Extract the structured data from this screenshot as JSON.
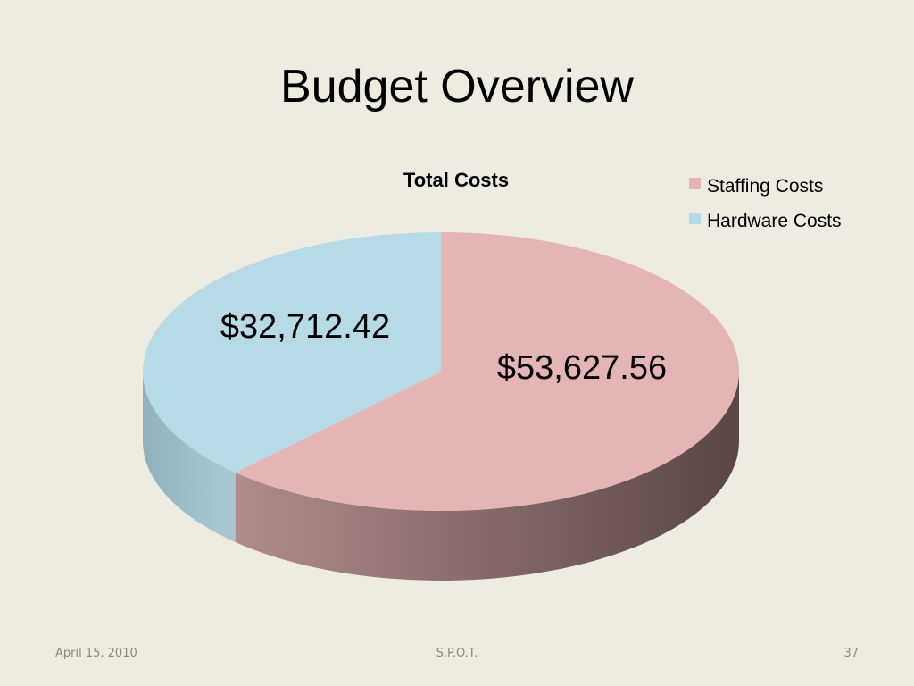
{
  "slide": {
    "title": "Budget Overview",
    "footer_date": "April 15, 2010",
    "footer_center": "S.P.O.T.",
    "page_number": "37"
  },
  "chart_data": {
    "type": "pie",
    "title": "Total Costs",
    "style": "3d",
    "legend_position": "top-right",
    "categories": [
      "Staffing Costs",
      "Hardware Costs"
    ],
    "values": [
      53627.56,
      32712.42
    ],
    "value_labels": [
      "$53,627.56",
      "$32,712.42"
    ],
    "colors": [
      "#e5b5b6",
      "#b6dbe6"
    ],
    "side_colors": {
      "staffing_light": "#b59090",
      "staffing_dark": "#5a4645",
      "hardware_light": "#a6c6d0",
      "hardware_dark": "#90b0bc"
    }
  }
}
